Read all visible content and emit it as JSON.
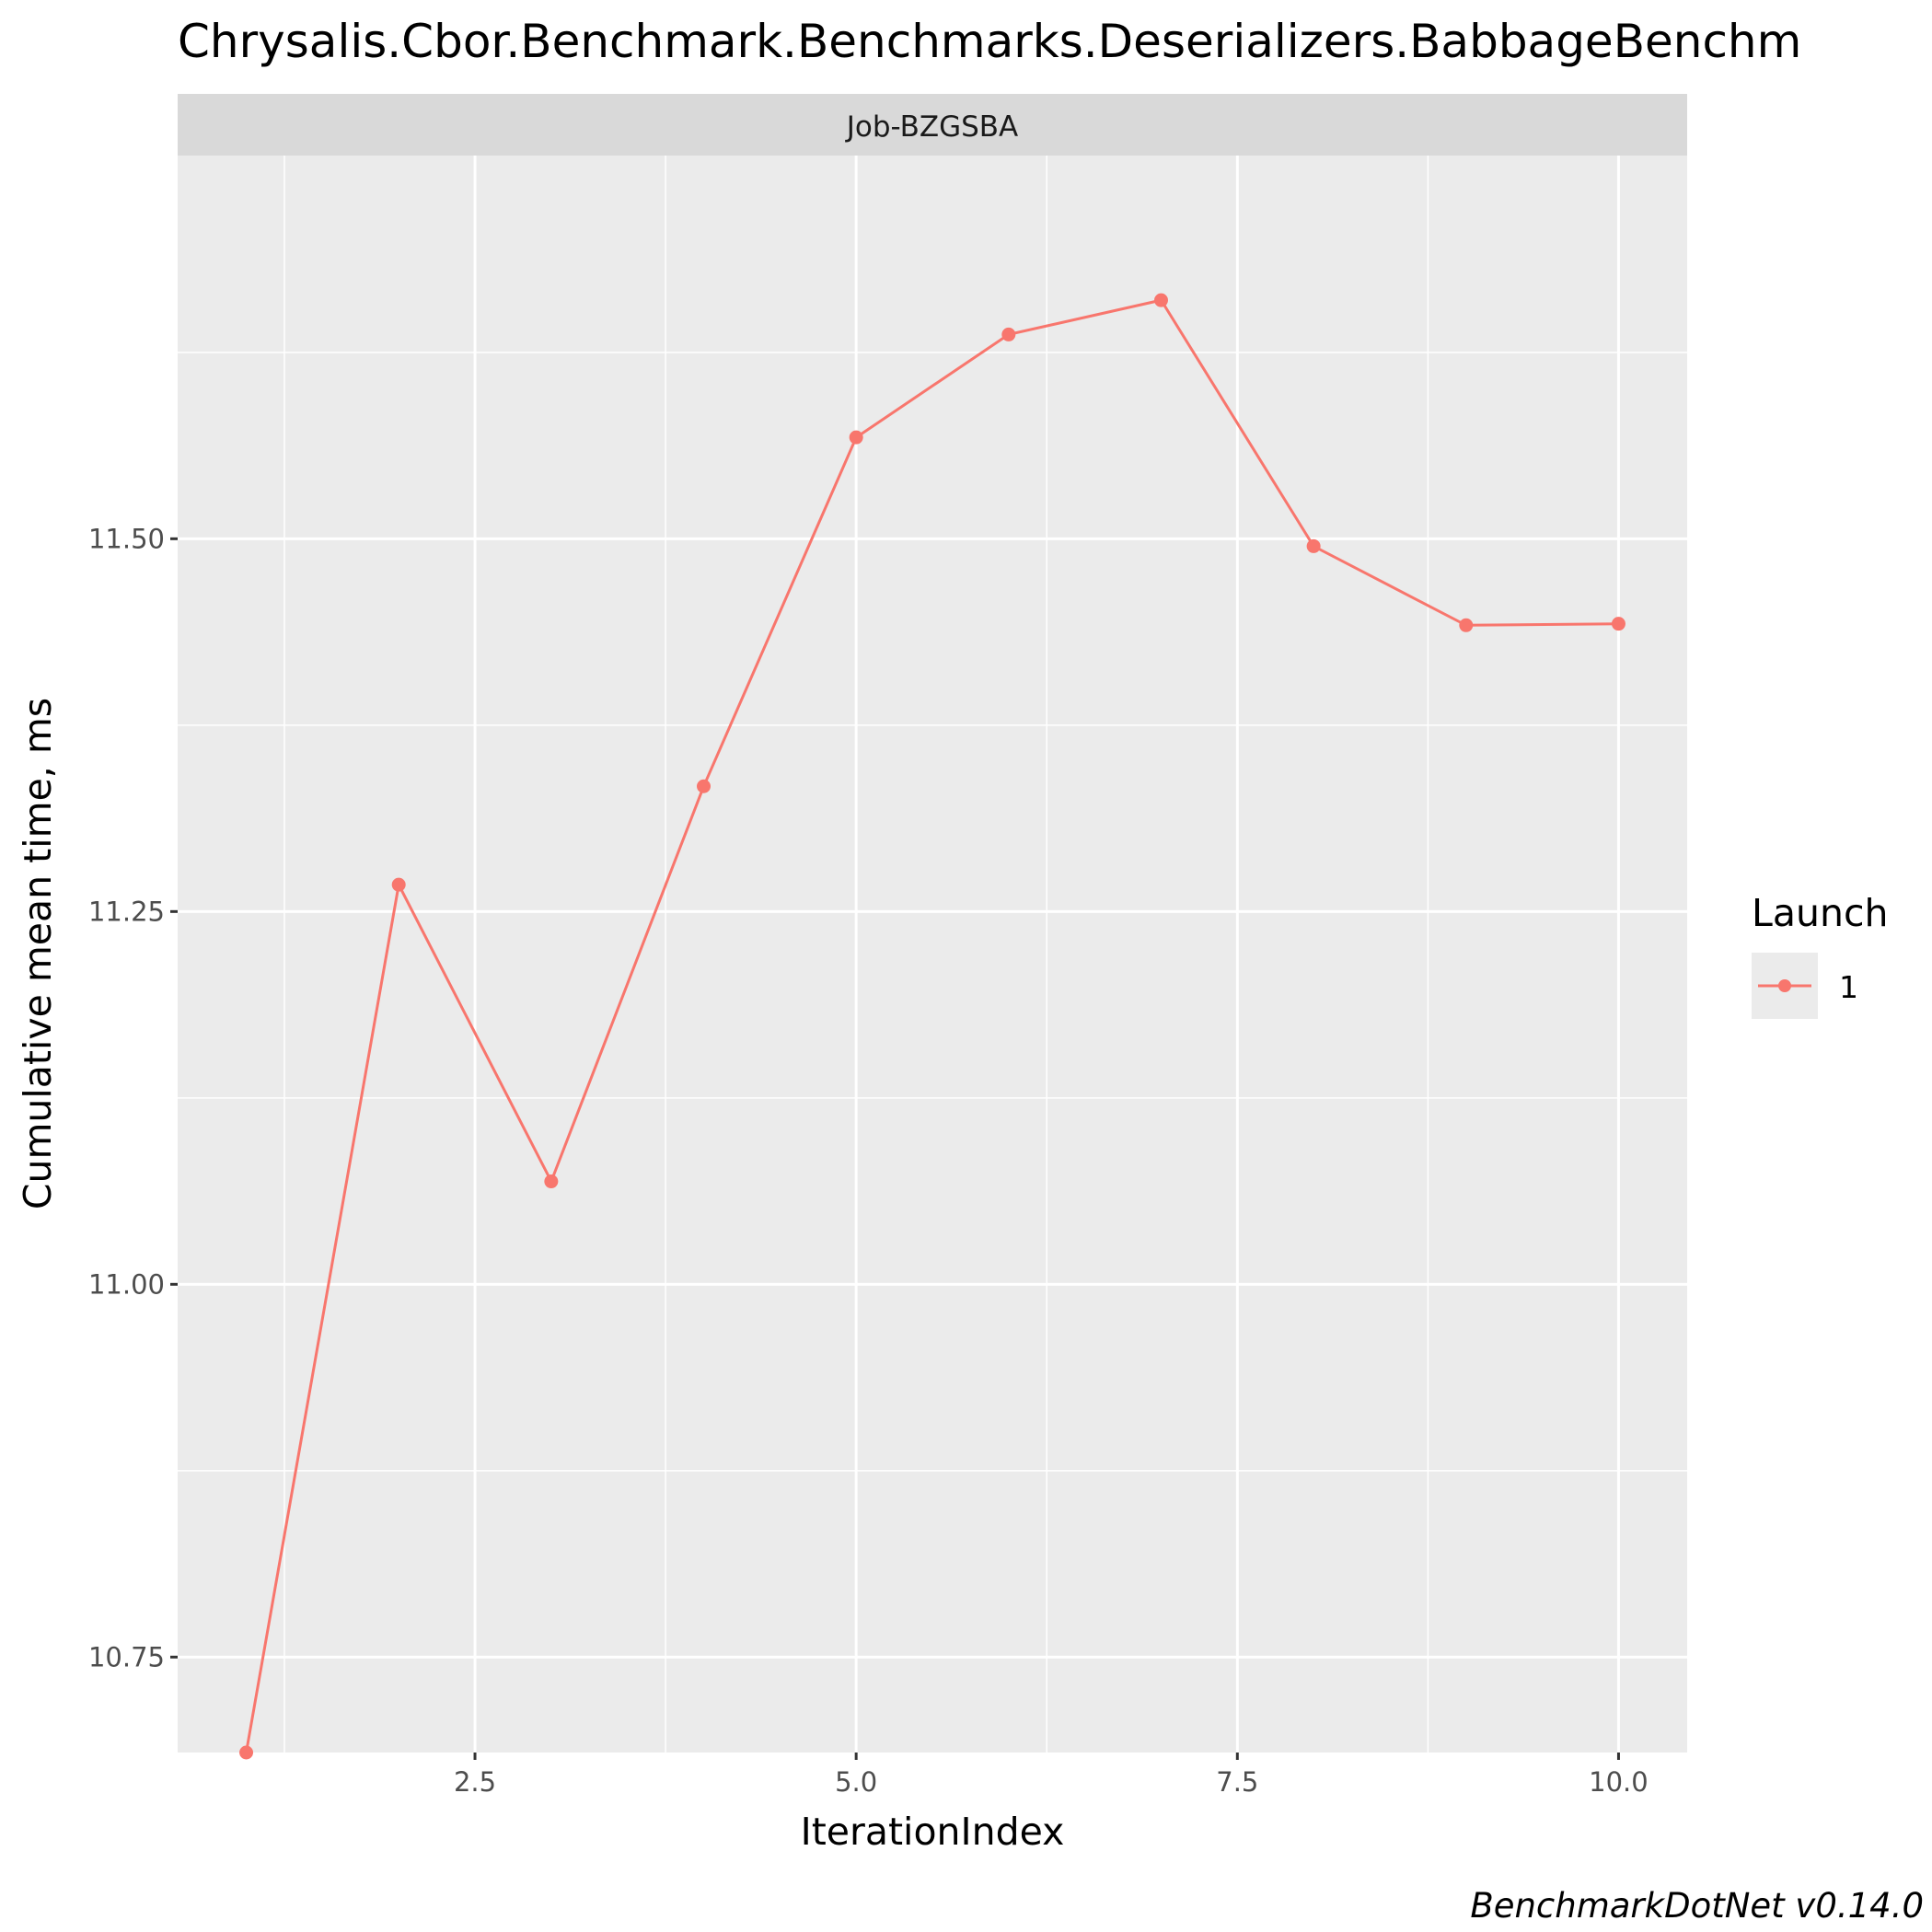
{
  "colors": {
    "panel_bg": "#EBEBEB",
    "strip_bg": "#D9D9D9",
    "grid": "#FFFFFF",
    "series": "#F8766D",
    "text": "#000000",
    "tick_text": "#4D4D4D"
  },
  "caption": "BenchmarkDotNet v0.14.0",
  "chart_data": {
    "type": "line",
    "title": "Chrysalis.Cbor.Benchmark.Benchmarks.Deserializers.BabbageBenchm",
    "facet_label": "Job-BZGSBA",
    "xlabel": "IterationIndex",
    "ylabel": "Cumulative mean time, ms",
    "xlim": [
      0.55,
      10.45
    ],
    "ylim": [
      10.686,
      11.757
    ],
    "x_ticks": [
      2.5,
      5.0,
      7.5,
      10.0
    ],
    "x_tick_labels": [
      "2.5",
      "5.0",
      "7.5",
      "10.0"
    ],
    "y_ticks": [
      10.75,
      11.0,
      11.25,
      11.5
    ],
    "y_tick_labels": [
      "10.75",
      "11.00",
      "11.25",
      "11.50"
    ],
    "grid": true,
    "legend": {
      "title": "Launch",
      "position": "right"
    },
    "series": [
      {
        "name": "1",
        "x": [
          1,
          2,
          3,
          4,
          5,
          6,
          7,
          8,
          9,
          10
        ],
        "values": [
          10.686,
          11.268,
          11.069,
          11.334,
          11.568,
          11.637,
          11.66,
          11.495,
          11.442,
          11.443
        ]
      }
    ]
  }
}
